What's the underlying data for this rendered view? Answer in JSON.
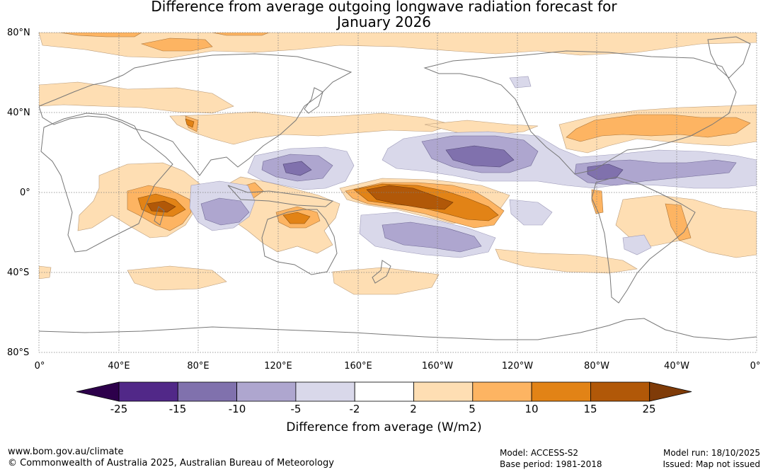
{
  "title": {
    "line1": "Difference from average outgoing longwave radiation forecast for",
    "line2": "January 2026"
  },
  "map": {
    "lat_labels": [
      "80°N",
      "40°N",
      "0°",
      "40°S",
      "80°S"
    ],
    "lon_labels": [
      "0°",
      "40°E",
      "80°E",
      "120°E",
      "160°E",
      "160°W",
      "120°W",
      "80°W",
      "40°W",
      "0°"
    ],
    "anomaly_regions": [
      {
        "name": "central-pacific-positive-max",
        "category": "15 to 25"
      },
      {
        "name": "central-pacific-positive",
        "category": "10 to 15"
      },
      {
        "name": "indian-ocean-positive-max",
        "category": "15 to 25"
      },
      {
        "name": "western-pacific-negative",
        "category": "-10 to -5"
      },
      {
        "name": "eastern-pacific-negative",
        "category": "-10 to -5"
      },
      {
        "name": "south-pacific-negative",
        "category": "-10 to -5"
      }
    ]
  },
  "colorbar": {
    "ticks": [
      "-25",
      "-15",
      "-10",
      "-5",
      "-2",
      "2",
      "5",
      "10",
      "15",
      "25"
    ],
    "colors": [
      "#512888",
      "#8071ad",
      "#aea6cf",
      "#d9d8ea",
      "#ffffff",
      "#fedeb3",
      "#fdb462",
      "#e28316",
      "#b15808"
    ],
    "under_color": "#2d004b",
    "over_color": "#7f3b08",
    "label": "Difference from average (W/m2)"
  },
  "footer": {
    "website": "www.bom.gov.au/climate",
    "copyright": "© Commonwealth of Australia 2025, Australian Bureau of Meteorology",
    "model": "Model: ACCESS-S2",
    "base_period": "Base period: 1981-2018",
    "model_run": "Model run: 18/10/2025",
    "issued": "Issued: Map not issued"
  }
}
